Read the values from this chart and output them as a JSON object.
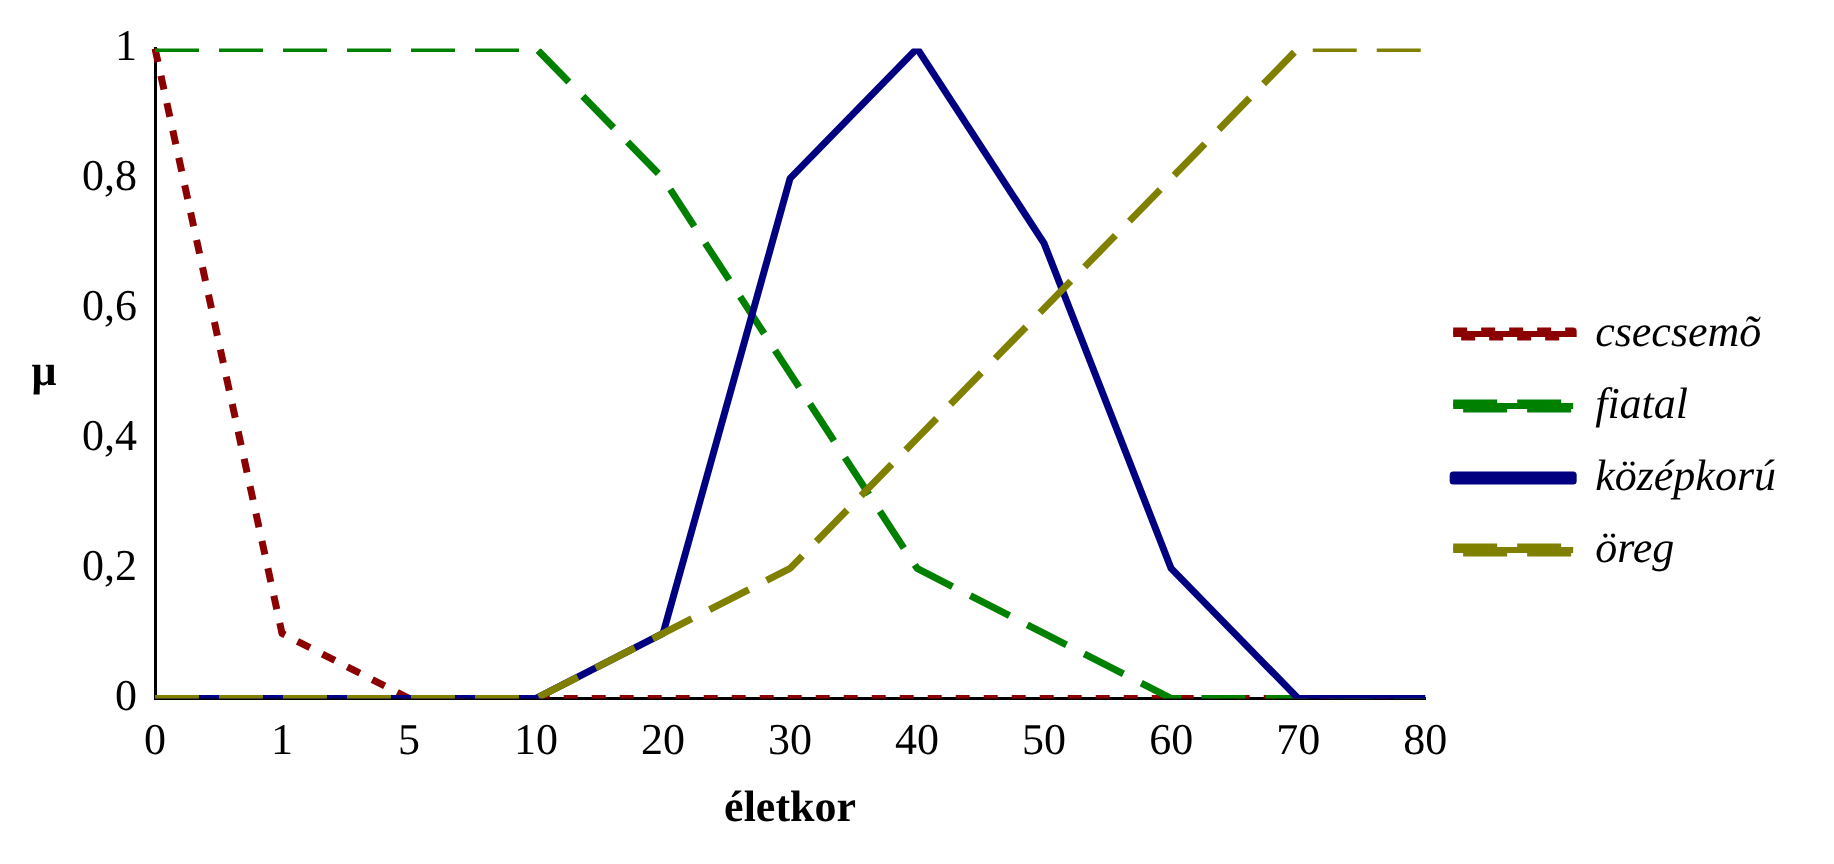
{
  "chart_data": {
    "type": "line",
    "xlabel": "életkor",
    "ylabel": "μ",
    "categories": [
      "0",
      "1",
      "5",
      "10",
      "20",
      "30",
      "40",
      "50",
      "60",
      "70",
      "80"
    ],
    "series": [
      {
        "name": "csecsemõ",
        "color": "#8b0000",
        "line_style": "dotted",
        "values": [
          1,
          0.1,
          0,
          0,
          0,
          0,
          0,
          0,
          0,
          0,
          0
        ]
      },
      {
        "name": "fiatal",
        "color": "#008000",
        "line_style": "dashed",
        "values": [
          1,
          1,
          1,
          1,
          0.8,
          0.5,
          0.2,
          0.1,
          0,
          0,
          0
        ]
      },
      {
        "name": "középkorú",
        "color": "#000080",
        "line_style": "solid",
        "values": [
          0,
          0,
          0,
          0,
          0.1,
          0.8,
          1,
          0.7,
          0.2,
          0,
          0
        ]
      },
      {
        "name": "öreg",
        "color": "#808000",
        "line_style": "dashed",
        "values": [
          0,
          0,
          0,
          0,
          0.1,
          0.2,
          0.4,
          0.6,
          0.8,
          1,
          1
        ]
      }
    ],
    "ylim": [
      0,
      1
    ],
    "yticks": [
      0,
      {
        "value": 0.2,
        "label": "0,2"
      },
      {
        "value": 0.4,
        "label": "0,4"
      },
      {
        "value": 0.6,
        "label": "0,6"
      },
      {
        "value": 0.8,
        "label": "0,8"
      },
      1
    ],
    "grid": false,
    "legend": "right",
    "marker": "none"
  }
}
